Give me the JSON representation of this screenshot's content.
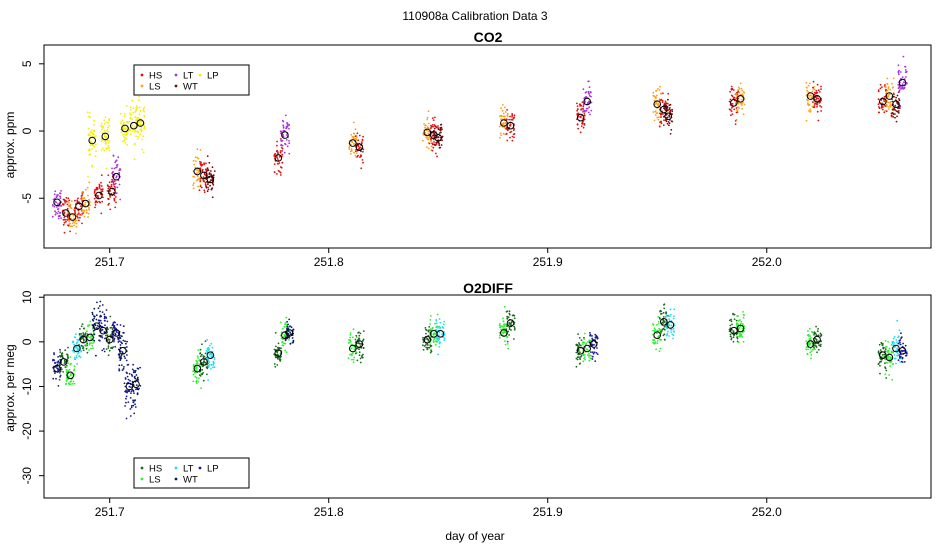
{
  "figure": {
    "suptitle": "110908a   Calibration Data 3",
    "xlabel": "day of year"
  },
  "chart_data": [
    {
      "type": "scatter",
      "title": "CO2",
      "ylabel": "approx. ppm",
      "xlabel": "",
      "xlim": [
        251.67,
        252.075
      ],
      "ylim": [
        -8.7,
        6.4
      ],
      "xticks": [
        251.7,
        251.8,
        251.9,
        252.0
      ],
      "xtick_labels": [
        "251.7",
        "251.8",
        "251.9",
        "252.0"
      ],
      "yticks": [
        -5,
        0,
        5
      ],
      "ytick_labels": [
        "-5",
        "0",
        "5"
      ],
      "legend": {
        "placement": "top-left",
        "entries": [
          {
            "label": "HS",
            "color": "#dd1111"
          },
          {
            "label": "LS",
            "color": "#ff9f1a"
          },
          {
            "label": "LT",
            "color": "#aa33dd"
          },
          {
            "label": "WT",
            "color": "#7a0a0a"
          },
          {
            "label": "LP",
            "color": "#f4f000"
          }
        ]
      },
      "clusters": [
        {
          "x": 251.676,
          "y": -5.3,
          "spread": 1.2,
          "color": "#aa33dd"
        },
        {
          "x": 251.68,
          "y": -6.1,
          "spread": 1.1,
          "color": "#dd1111"
        },
        {
          "x": 251.683,
          "y": -6.4,
          "spread": 1.0,
          "color": "#ff9f1a"
        },
        {
          "x": 251.686,
          "y": -5.6,
          "spread": 1.0,
          "color": "#dd1111"
        },
        {
          "x": 251.689,
          "y": -5.4,
          "spread": 1.0,
          "color": "#ff9f1a"
        },
        {
          "x": 251.692,
          "y": -0.7,
          "spread": 1.4,
          "color": "#f4f000"
        },
        {
          "x": 251.695,
          "y": -4.8,
          "spread": 1.0,
          "color": "#dd1111"
        },
        {
          "x": 251.698,
          "y": -0.4,
          "spread": 1.5,
          "color": "#f4f000"
        },
        {
          "x": 251.701,
          "y": -4.5,
          "spread": 1.0,
          "color": "#dd1111"
        },
        {
          "x": 251.703,
          "y": -3.4,
          "spread": 1.2,
          "color": "#aa33dd"
        },
        {
          "x": 251.707,
          "y": 0.2,
          "spread": 1.6,
          "color": "#f4f000"
        },
        {
          "x": 251.711,
          "y": 0.4,
          "spread": 1.6,
          "color": "#f4f000"
        },
        {
          "x": 251.714,
          "y": 0.6,
          "spread": 1.5,
          "color": "#f4f000"
        },
        {
          "x": 251.74,
          "y": -3.0,
          "spread": 1.2,
          "color": "#ff9f1a"
        },
        {
          "x": 251.743,
          "y": -3.3,
          "spread": 1.1,
          "color": "#dd1111"
        },
        {
          "x": 251.746,
          "y": -3.6,
          "spread": 1.0,
          "color": "#7a0a0a"
        },
        {
          "x": 251.777,
          "y": -2.0,
          "spread": 1.1,
          "color": "#dd1111"
        },
        {
          "x": 251.78,
          "y": -0.3,
          "spread": 1.2,
          "color": "#aa33dd"
        },
        {
          "x": 251.811,
          "y": -0.9,
          "spread": 1.1,
          "color": "#ff9f1a"
        },
        {
          "x": 251.814,
          "y": -1.2,
          "spread": 1.0,
          "color": "#dd1111"
        },
        {
          "x": 251.845,
          "y": -0.1,
          "spread": 1.2,
          "color": "#ff9f1a"
        },
        {
          "x": 251.848,
          "y": -0.3,
          "spread": 1.1,
          "color": "#dd1111"
        },
        {
          "x": 251.85,
          "y": -0.5,
          "spread": 1.0,
          "color": "#7a0a0a"
        },
        {
          "x": 251.88,
          "y": 0.6,
          "spread": 1.1,
          "color": "#ff9f1a"
        },
        {
          "x": 251.883,
          "y": 0.4,
          "spread": 1.0,
          "color": "#dd1111"
        },
        {
          "x": 251.915,
          "y": 1.0,
          "spread": 1.1,
          "color": "#dd1111"
        },
        {
          "x": 251.918,
          "y": 2.2,
          "spread": 1.2,
          "color": "#aa33dd"
        },
        {
          "x": 251.95,
          "y": 2.0,
          "spread": 1.1,
          "color": "#ff9f1a"
        },
        {
          "x": 251.953,
          "y": 1.6,
          "spread": 1.0,
          "color": "#dd1111"
        },
        {
          "x": 251.955,
          "y": 1.1,
          "spread": 1.0,
          "color": "#7a0a0a"
        },
        {
          "x": 251.985,
          "y": 2.1,
          "spread": 1.1,
          "color": "#dd1111"
        },
        {
          "x": 251.988,
          "y": 2.4,
          "spread": 1.0,
          "color": "#ff9f1a"
        },
        {
          "x": 252.02,
          "y": 2.6,
          "spread": 1.0,
          "color": "#ff9f1a"
        },
        {
          "x": 252.023,
          "y": 2.4,
          "spread": 1.0,
          "color": "#dd1111"
        },
        {
          "x": 252.053,
          "y": 2.2,
          "spread": 1.2,
          "color": "#dd1111"
        },
        {
          "x": 252.056,
          "y": 2.6,
          "spread": 1.2,
          "color": "#ff9f1a"
        },
        {
          "x": 252.059,
          "y": 2.0,
          "spread": 1.0,
          "color": "#7a0a0a"
        },
        {
          "x": 252.062,
          "y": 3.6,
          "spread": 1.3,
          "color": "#aa33dd"
        }
      ]
    },
    {
      "type": "scatter",
      "title": "O2DIFF",
      "ylabel": "approx. per meg",
      "xlabel": "day of year",
      "xlim": [
        251.67,
        252.075
      ],
      "ylim": [
        -35,
        10.5
      ],
      "xticks": [
        251.7,
        251.8,
        251.9,
        252.0
      ],
      "xtick_labels": [
        "251.7",
        "251.8",
        "251.9",
        "252.0"
      ],
      "yticks": [
        -30,
        -20,
        -10,
        0,
        10
      ],
      "ytick_labels": [
        "-30",
        "-20",
        "-10",
        "0",
        "10"
      ],
      "legend": {
        "placement": "bottom-left",
        "entries": [
          {
            "label": "HS",
            "color": "#1a6b1a"
          },
          {
            "label": "LS",
            "color": "#33ee33"
          },
          {
            "label": "LT",
            "color": "#22ddee"
          },
          {
            "label": "WT",
            "color": "#0a1a6b"
          },
          {
            "label": "LP",
            "color": "#1a1a99"
          }
        ]
      },
      "clusters": [
        {
          "x": 251.676,
          "y": -6.0,
          "spread": 3.5,
          "color": "#1a1a99"
        },
        {
          "x": 251.679,
          "y": -4.5,
          "spread": 3.0,
          "color": "#1a6b1a"
        },
        {
          "x": 251.682,
          "y": -7.5,
          "spread": 3.0,
          "color": "#33ee33"
        },
        {
          "x": 251.685,
          "y": -1.5,
          "spread": 3.0,
          "color": "#22ddee"
        },
        {
          "x": 251.688,
          "y": 0.5,
          "spread": 3.0,
          "color": "#1a6b1a"
        },
        {
          "x": 251.691,
          "y": 1.0,
          "spread": 3.0,
          "color": "#33ee33"
        },
        {
          "x": 251.694,
          "y": 3.5,
          "spread": 4.0,
          "color": "#0a1a6b"
        },
        {
          "x": 251.697,
          "y": 2.5,
          "spread": 4.0,
          "color": "#1a1a99"
        },
        {
          "x": 251.7,
          "y": 0.5,
          "spread": 3.0,
          "color": "#1a6b1a"
        },
        {
          "x": 251.703,
          "y": 2.0,
          "spread": 4.0,
          "color": "#1a1a99"
        },
        {
          "x": 251.706,
          "y": -2.0,
          "spread": 4.0,
          "color": "#0a1a6b"
        },
        {
          "x": 251.709,
          "y": -10.0,
          "spread": 5.0,
          "color": "#1a1a99"
        },
        {
          "x": 251.712,
          "y": -9.5,
          "spread": 5.0,
          "color": "#0a1a6b"
        },
        {
          "x": 251.74,
          "y": -6.0,
          "spread": 3.0,
          "color": "#33ee33"
        },
        {
          "x": 251.743,
          "y": -4.5,
          "spread": 3.0,
          "color": "#1a6b1a"
        },
        {
          "x": 251.746,
          "y": -3.0,
          "spread": 3.0,
          "color": "#22ddee"
        },
        {
          "x": 251.777,
          "y": -2.5,
          "spread": 3.0,
          "color": "#1a6b1a"
        },
        {
          "x": 251.78,
          "y": 1.5,
          "spread": 3.0,
          "color": "#33ee33"
        },
        {
          "x": 251.782,
          "y": 2.0,
          "spread": 3.0,
          "color": "#0a1a6b"
        },
        {
          "x": 251.811,
          "y": -1.5,
          "spread": 3.0,
          "color": "#33ee33"
        },
        {
          "x": 251.814,
          "y": -0.5,
          "spread": 2.5,
          "color": "#1a6b1a"
        },
        {
          "x": 251.845,
          "y": 0.5,
          "spread": 3.0,
          "color": "#1a6b1a"
        },
        {
          "x": 251.848,
          "y": 1.8,
          "spread": 3.0,
          "color": "#33ee33"
        },
        {
          "x": 251.851,
          "y": 1.8,
          "spread": 3.0,
          "color": "#22ddee"
        },
        {
          "x": 251.88,
          "y": 2.0,
          "spread": 3.0,
          "color": "#33ee33"
        },
        {
          "x": 251.883,
          "y": 4.2,
          "spread": 3.0,
          "color": "#1a6b1a"
        },
        {
          "x": 251.915,
          "y": -2.0,
          "spread": 3.0,
          "color": "#1a6b1a"
        },
        {
          "x": 251.918,
          "y": -1.5,
          "spread": 3.0,
          "color": "#33ee33"
        },
        {
          "x": 251.921,
          "y": -0.5,
          "spread": 3.0,
          "color": "#1a1a99"
        },
        {
          "x": 251.95,
          "y": 1.5,
          "spread": 3.0,
          "color": "#33ee33"
        },
        {
          "x": 251.953,
          "y": 4.5,
          "spread": 3.0,
          "color": "#1a6b1a"
        },
        {
          "x": 251.956,
          "y": 3.8,
          "spread": 3.0,
          "color": "#22ddee"
        },
        {
          "x": 251.985,
          "y": 2.5,
          "spread": 3.0,
          "color": "#1a6b1a"
        },
        {
          "x": 251.988,
          "y": 3.0,
          "spread": 3.0,
          "color": "#33ee33"
        },
        {
          "x": 252.02,
          "y": -0.5,
          "spread": 3.0,
          "color": "#33ee33"
        },
        {
          "x": 252.023,
          "y": 0.5,
          "spread": 3.0,
          "color": "#1a6b1a"
        },
        {
          "x": 252.053,
          "y": -3.0,
          "spread": 3.0,
          "color": "#1a6b1a"
        },
        {
          "x": 252.056,
          "y": -3.5,
          "spread": 3.0,
          "color": "#33ee33"
        },
        {
          "x": 252.059,
          "y": -1.5,
          "spread": 3.0,
          "color": "#22ddee"
        },
        {
          "x": 252.062,
          "y": -2.0,
          "spread": 3.0,
          "color": "#1a1a99"
        }
      ]
    }
  ]
}
